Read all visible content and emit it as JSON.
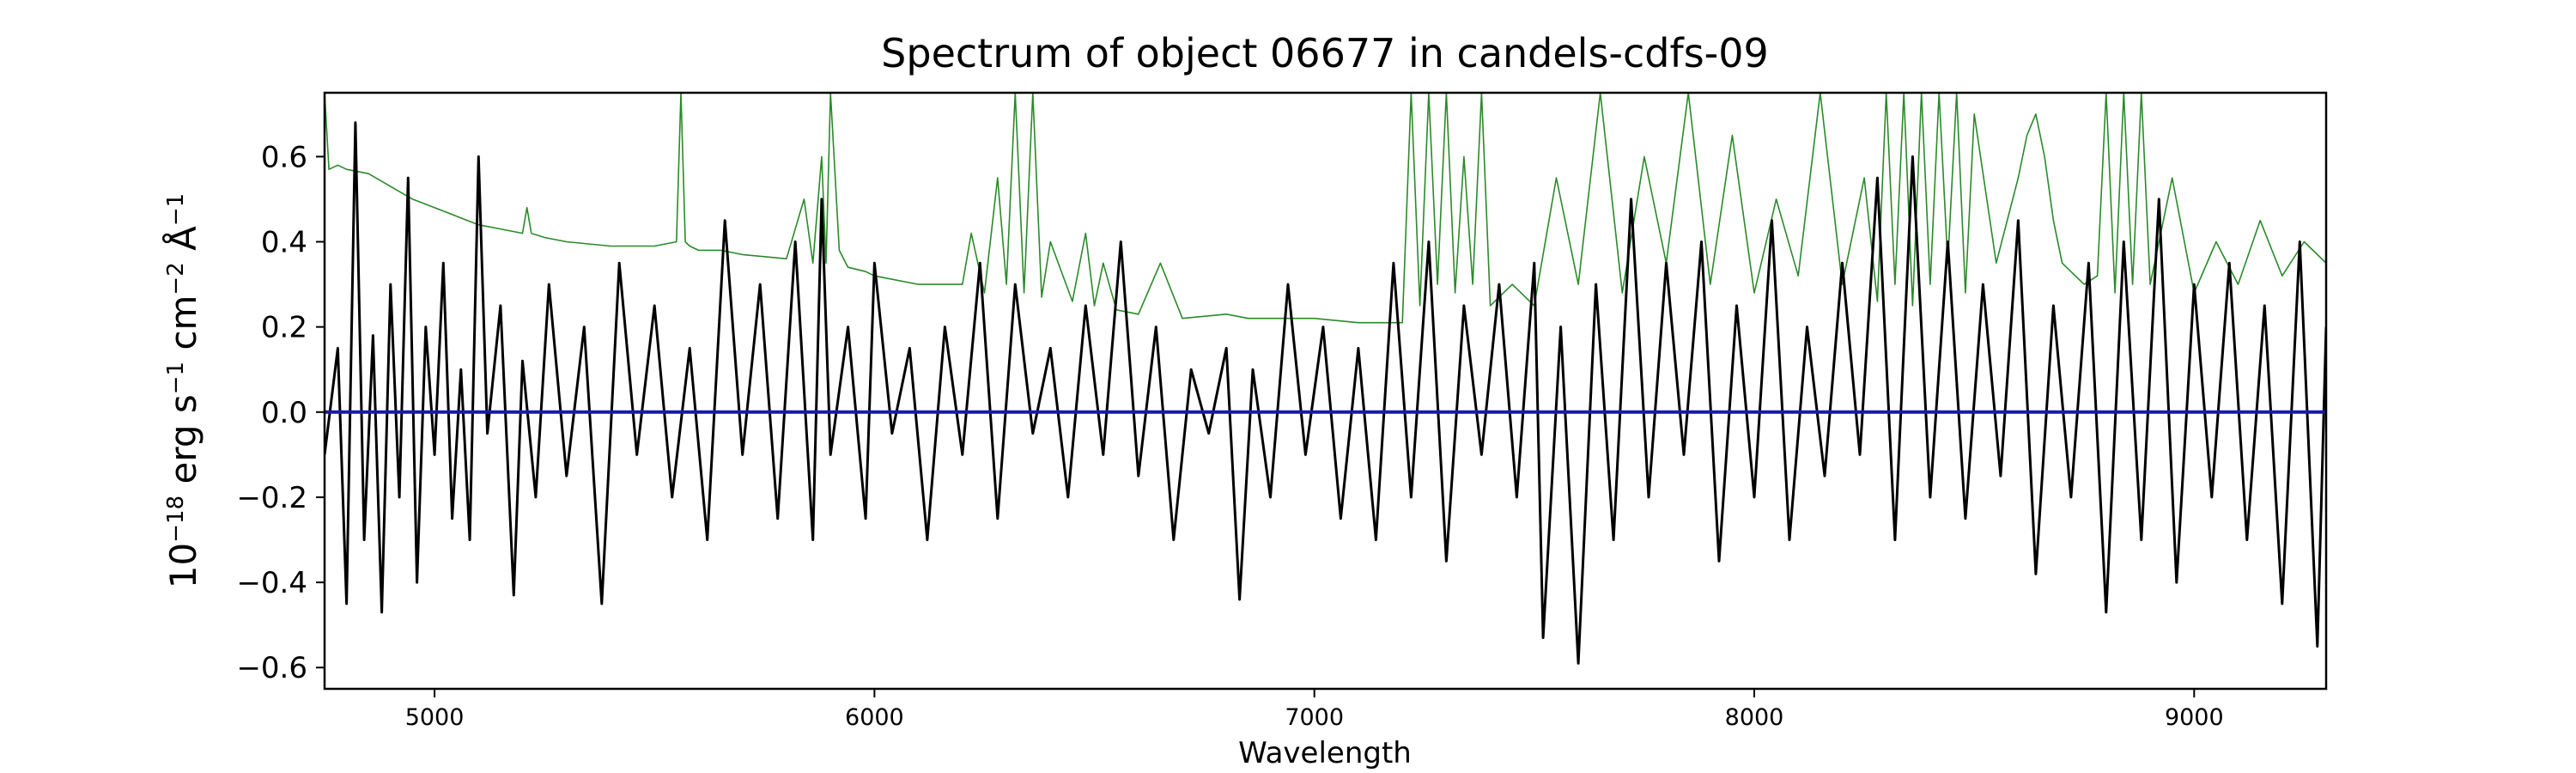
{
  "chart_data": {
    "type": "line",
    "title": "Spectrum of object 06677 in candels-cdfs-09",
    "xlabel": "Wavelength",
    "ylabel": "10^-18 erg s^-1 cm^-2 Å^-1",
    "xlim": [
      4750,
      9300
    ],
    "ylim": [
      -0.65,
      0.75
    ],
    "grid": false,
    "x_ticks": [
      5000,
      6000,
      7000,
      8000,
      9000
    ],
    "y_ticks": [
      0.6,
      0.4,
      0.2,
      0.0,
      -0.2,
      -0.4,
      -0.6
    ],
    "series": [
      {
        "role": "flux",
        "color": "#000000",
        "x": [
          4750,
          4780,
          4800,
          4820,
          4840,
          4860,
          4880,
          4900,
          4920,
          4940,
          4960,
          4980,
          5000,
          5020,
          5040,
          5060,
          5080,
          5100,
          5120,
          5150,
          5180,
          5200,
          5230,
          5260,
          5300,
          5340,
          5380,
          5420,
          5460,
          5500,
          5540,
          5580,
          5620,
          5660,
          5700,
          5740,
          5780,
          5820,
          5860,
          5880,
          5900,
          5940,
          5980,
          6000,
          6040,
          6080,
          6120,
          6160,
          6200,
          6240,
          6280,
          6320,
          6360,
          6400,
          6440,
          6480,
          6520,
          6560,
          6600,
          6640,
          6680,
          6720,
          6760,
          6800,
          6830,
          6860,
          6900,
          6940,
          6980,
          7020,
          7060,
          7100,
          7140,
          7180,
          7220,
          7260,
          7300,
          7340,
          7380,
          7420,
          7460,
          7500,
          7520,
          7560,
          7600,
          7640,
          7680,
          7720,
          7760,
          7800,
          7840,
          7880,
          7920,
          7960,
          8000,
          8040,
          8080,
          8120,
          8160,
          8200,
          8240,
          8280,
          8320,
          8360,
          8400,
          8440,
          8480,
          8520,
          8560,
          8600,
          8640,
          8680,
          8720,
          8760,
          8800,
          8840,
          8880,
          8920,
          8960,
          9000,
          9040,
          9080,
          9120,
          9160,
          9200,
          9240,
          9280,
          9300
        ],
        "y": [
          -0.1,
          0.15,
          -0.45,
          0.68,
          -0.3,
          0.18,
          -0.47,
          0.3,
          -0.2,
          0.55,
          -0.4,
          0.2,
          -0.1,
          0.35,
          -0.25,
          0.1,
          -0.3,
          0.6,
          -0.05,
          0.25,
          -0.43,
          0.12,
          -0.2,
          0.3,
          -0.15,
          0.2,
          -0.45,
          0.35,
          -0.1,
          0.25,
          -0.2,
          0.15,
          -0.3,
          0.45,
          -0.1,
          0.3,
          -0.25,
          0.4,
          -0.3,
          0.5,
          -0.1,
          0.2,
          -0.25,
          0.35,
          -0.05,
          0.15,
          -0.3,
          0.2,
          -0.1,
          0.35,
          -0.25,
          0.3,
          -0.05,
          0.15,
          -0.2,
          0.25,
          -0.1,
          0.4,
          -0.15,
          0.2,
          -0.3,
          0.1,
          -0.05,
          0.15,
          -0.44,
          0.1,
          -0.2,
          0.3,
          -0.1,
          0.2,
          -0.25,
          0.15,
          -0.3,
          0.35,
          -0.2,
          0.4,
          -0.35,
          0.25,
          -0.1,
          0.3,
          -0.2,
          0.35,
          -0.53,
          0.2,
          -0.59,
          0.3,
          -0.3,
          0.5,
          -0.2,
          0.35,
          -0.1,
          0.4,
          -0.35,
          0.25,
          -0.2,
          0.45,
          -0.3,
          0.2,
          -0.15,
          0.35,
          -0.1,
          0.55,
          -0.3,
          0.6,
          -0.2,
          0.4,
          -0.25,
          0.3,
          -0.15,
          0.45,
          -0.38,
          0.25,
          -0.2,
          0.35,
          -0.47,
          0.4,
          -0.3,
          0.5,
          -0.4,
          0.3,
          -0.2,
          0.35,
          -0.3,
          0.25,
          -0.45,
          0.4,
          -0.55,
          0.2
        ]
      },
      {
        "role": "error",
        "color": "#2a8a2a",
        "x": [
          4750,
          4760,
          4780,
          4800,
          4850,
          4900,
          4950,
          5000,
          5050,
          5100,
          5150,
          5200,
          5210,
          5220,
          5250,
          5300,
          5400,
          5500,
          5550,
          5560,
          5570,
          5580,
          5600,
          5650,
          5700,
          5800,
          5840,
          5860,
          5880,
          5890,
          5900,
          5920,
          5940,
          5980,
          6000,
          6100,
          6200,
          6220,
          6250,
          6280,
          6300,
          6320,
          6340,
          6360,
          6380,
          6400,
          6450,
          6480,
          6500,
          6520,
          6550,
          6600,
          6650,
          6700,
          6800,
          6850,
          6900,
          6950,
          7000,
          7100,
          7200,
          7220,
          7240,
          7260,
          7280,
          7300,
          7320,
          7340,
          7360,
          7380,
          7400,
          7450,
          7500,
          7550,
          7600,
          7650,
          7700,
          7750,
          7800,
          7850,
          7900,
          7950,
          8000,
          8050,
          8100,
          8150,
          8200,
          8250,
          8280,
          8300,
          8320,
          8340,
          8360,
          8380,
          8400,
          8420,
          8440,
          8460,
          8480,
          8500,
          8550,
          8600,
          8620,
          8640,
          8660,
          8680,
          8700,
          8750,
          8780,
          8800,
          8820,
          8840,
          8860,
          8880,
          8900,
          8950,
          9000,
          9050,
          9100,
          9150,
          9200,
          9250,
          9300
        ],
        "y": [
          0.75,
          0.57,
          0.58,
          0.57,
          0.56,
          0.53,
          0.5,
          0.48,
          0.46,
          0.44,
          0.43,
          0.42,
          0.48,
          0.42,
          0.41,
          0.4,
          0.39,
          0.39,
          0.4,
          0.75,
          0.4,
          0.39,
          0.38,
          0.38,
          0.37,
          0.36,
          0.5,
          0.35,
          0.6,
          0.35,
          0.75,
          0.38,
          0.34,
          0.33,
          0.32,
          0.3,
          0.3,
          0.42,
          0.28,
          0.55,
          0.3,
          0.75,
          0.28,
          0.75,
          0.27,
          0.4,
          0.26,
          0.42,
          0.25,
          0.35,
          0.24,
          0.23,
          0.35,
          0.22,
          0.23,
          0.22,
          0.22,
          0.22,
          0.22,
          0.21,
          0.21,
          0.75,
          0.25,
          0.75,
          0.3,
          0.75,
          0.28,
          0.6,
          0.3,
          0.75,
          0.25,
          0.3,
          0.25,
          0.55,
          0.3,
          0.75,
          0.28,
          0.6,
          0.35,
          0.75,
          0.3,
          0.65,
          0.28,
          0.5,
          0.32,
          0.75,
          0.3,
          0.55,
          0.26,
          0.75,
          0.3,
          0.75,
          0.25,
          0.75,
          0.3,
          0.75,
          0.35,
          0.75,
          0.28,
          0.7,
          0.35,
          0.55,
          0.65,
          0.7,
          0.6,
          0.45,
          0.35,
          0.3,
          0.32,
          0.75,
          0.28,
          0.75,
          0.3,
          0.75,
          0.3,
          0.55,
          0.28,
          0.4,
          0.3,
          0.45,
          0.32,
          0.4,
          0.35
        ]
      },
      {
        "role": "zero",
        "color": "#1a1aa6",
        "x": [
          4750,
          9300
        ],
        "y": [
          0.0,
          0.0
        ]
      }
    ]
  }
}
